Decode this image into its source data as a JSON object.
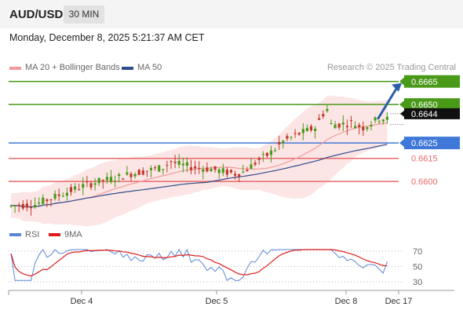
{
  "header": {
    "symbol": "AUD/USD",
    "timeframe": "30 MIN"
  },
  "timestamp": "Monday, December 8, 2025 5:21:37 AM CET",
  "legend": {
    "ma20_label": "MA 20 + Bollinger Bands",
    "ma50_label": "MA 50",
    "credit": "Research © 2025 Trading Central"
  },
  "colors": {
    "resistance": "#4a9a1a",
    "pivot": "#3f78d8",
    "support": "#e86a6a",
    "ma20": "#f29a9a",
    "ma50": "#2f4d8c",
    "bands_fill": "#fbe0e0",
    "candle_up": "#4a9a1a",
    "candle_down": "#c0392b",
    "arrow": "#2a5fa8",
    "rsi": "#5a86d8",
    "rsi_ma": "#e01c1c"
  },
  "chart_data": [
    {
      "type": "candlestick",
      "title": "AUD/USD",
      "timeframe": "30 MIN",
      "ylim": [
        0.6574,
        0.6671
      ],
      "x_ticks": [
        "Dec 4",
        "Dec 5",
        "Dec 8",
        "Dec 17"
      ],
      "levels": [
        {
          "label": "0.6665",
          "value": 0.6665,
          "kind": "resistance",
          "style": "box"
        },
        {
          "label": "0.6650",
          "value": 0.665,
          "kind": "resistance",
          "style": "box"
        },
        {
          "label": "0.6625",
          "value": 0.6625,
          "kind": "pivot",
          "style": "box"
        },
        {
          "label": "0.6615",
          "value": 0.6615,
          "kind": "support",
          "style": "text"
        },
        {
          "label": "0.6600",
          "value": 0.66,
          "kind": "support",
          "style": "text"
        }
      ],
      "last_price": {
        "label": "0.6644",
        "value": 0.6644
      },
      "series": [
        {
          "name": "MA 20 + Bollinger Bands"
        },
        {
          "name": "MA 50"
        }
      ],
      "forecast_arrow": {
        "from": 0.6641,
        "to": 0.6665
      }
    },
    {
      "type": "line",
      "series": [
        {
          "name": "RSI"
        },
        {
          "name": "9MA"
        }
      ],
      "y_ticks": [
        "70",
        "50",
        "30"
      ],
      "ylim": [
        20,
        80
      ],
      "levels": [
        70,
        50,
        30
      ]
    }
  ]
}
